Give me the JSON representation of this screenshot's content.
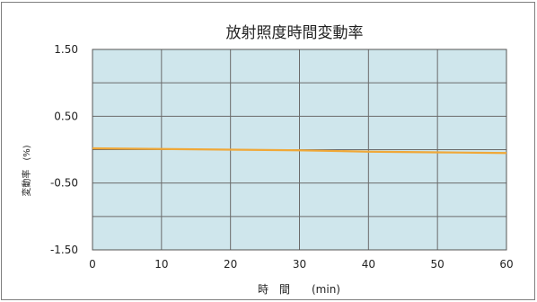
{
  "chart_data": {
    "type": "line",
    "title": "放射照度時間変動率",
    "xlabel": "時　間　　(min)",
    "ylabel": "変動率　(%)",
    "xlim": [
      0,
      60
    ],
    "ylim": [
      -1.5,
      1.5
    ],
    "x_ticks": [
      "0",
      "10",
      "20",
      "30",
      "40",
      "50",
      "60"
    ],
    "y_ticks": [
      "1.50",
      "0.50",
      "-0.50",
      "-1.50"
    ],
    "grid": true,
    "legend": "none",
    "colors": {
      "plot_bg": "#cfe6ec",
      "grid": "#6b6b6b",
      "line": "#f0a838"
    },
    "series": [
      {
        "x": [
          0,
          10,
          20,
          30,
          40,
          50,
          60
        ],
        "y": [
          0.02,
          0.01,
          0.0,
          -0.01,
          -0.03,
          -0.04,
          -0.05
        ]
      }
    ]
  }
}
